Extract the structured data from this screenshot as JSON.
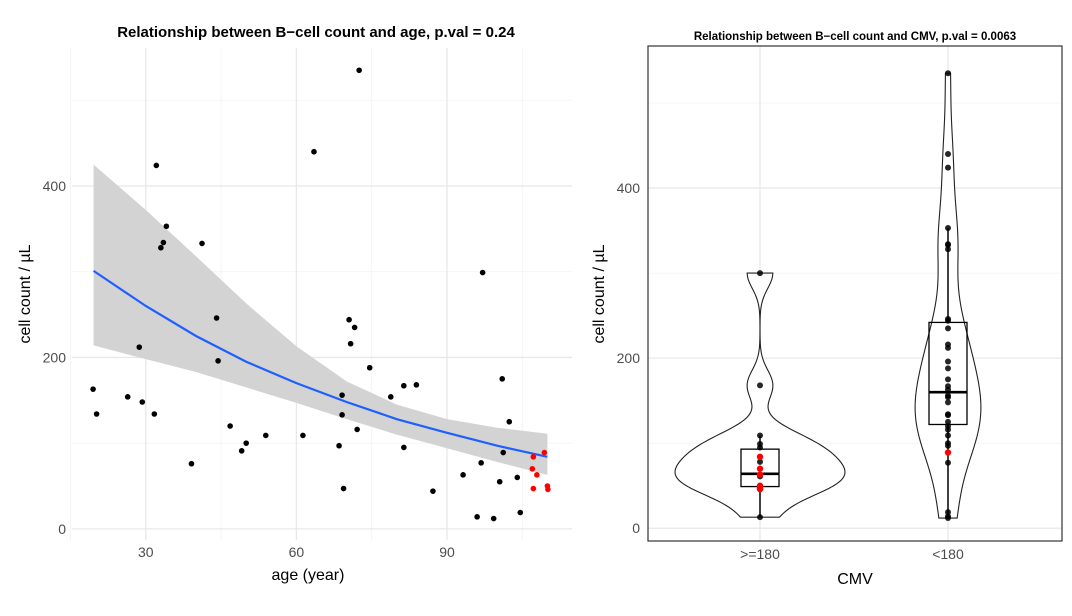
{
  "chart_data": [
    {
      "type": "scatter",
      "title": "Relationship between B−cell count and age, p.val = 0.24",
      "xlabel": "age (year)",
      "ylabel": "cell count / µL",
      "xlim": [
        15.3,
        114.9
      ],
      "ylim": [
        -13,
        561
      ],
      "xticks": [
        30,
        60,
        90
      ],
      "yticks": [
        0,
        200,
        400
      ],
      "grid": true,
      "colors": {
        "point": "#000000",
        "highlight": "#ff0000",
        "fit": "#1f5fff",
        "band": "#d3d3d3"
      },
      "points": [
        [
          72.5,
          535
        ],
        [
          63.5,
          440
        ],
        [
          32.1,
          424
        ],
        [
          34.1,
          353
        ],
        [
          33.5,
          334
        ],
        [
          33.0,
          328
        ],
        [
          41.2,
          333
        ],
        [
          97.1,
          299
        ],
        [
          44.1,
          246
        ],
        [
          70.5,
          244
        ],
        [
          71.6,
          235
        ],
        [
          28.7,
          212
        ],
        [
          70.8,
          216
        ],
        [
          44.4,
          196
        ],
        [
          74.6,
          188
        ],
        [
          101.0,
          175
        ],
        [
          19.5,
          163
        ],
        [
          81.4,
          167
        ],
        [
          83.9,
          168
        ],
        [
          26.4,
          154
        ],
        [
          78.8,
          154
        ],
        [
          69.1,
          156
        ],
        [
          29.3,
          148
        ],
        [
          20.2,
          134
        ],
        [
          31.7,
          134
        ],
        [
          69.1,
          133
        ],
        [
          102.4,
          125
        ],
        [
          46.8,
          120
        ],
        [
          72.1,
          116
        ],
        [
          53.9,
          109
        ],
        [
          61.3,
          109
        ],
        [
          50.0,
          100
        ],
        [
          68.5,
          97
        ],
        [
          81.4,
          95
        ],
        [
          49.1,
          91
        ],
        [
          101.2,
          89
        ],
        [
          96.8,
          77
        ],
        [
          39.1,
          76
        ],
        [
          93.2,
          63
        ],
        [
          104.0,
          60
        ],
        [
          100.5,
          55
        ],
        [
          69.4,
          47
        ],
        [
          87.2,
          44
        ],
        [
          104.6,
          19
        ],
        [
          96.0,
          14
        ],
        [
          99.3,
          12
        ]
      ],
      "highlight_points": [
        [
          109.4,
          89
        ],
        [
          107.2,
          84
        ],
        [
          107.0,
          70
        ],
        [
          107.9,
          63
        ],
        [
          107.2,
          47
        ],
        [
          110.0,
          50
        ],
        [
          110.1,
          46
        ]
      ],
      "fit": {
        "x": [
          19.6,
          30,
          40,
          50,
          60,
          70,
          80,
          90,
          100,
          110
        ],
        "y": [
          301,
          260,
          225,
          195,
          170,
          148,
          128,
          112,
          97,
          84
        ],
        "upper": [
          425,
          372,
          318,
          263,
          213,
          172,
          145,
          128,
          118,
          111
        ],
        "lower": [
          214,
          198,
          183,
          165,
          147,
          128,
          110,
          94,
          78,
          63
        ]
      }
    },
    {
      "type": "violin",
      "title": "Relationship between B−cell count and CMV, p.val = 0.0063",
      "xlabel": "CMV",
      "ylabel": "cell count / µL",
      "categories": [
        ">=180",
        "<180"
      ],
      "ylim": [
        -15,
        567
      ],
      "yticks": [
        0,
        200,
        400
      ],
      "grid": true,
      "groups": [
        {
          "name": ">=180",
          "points": [
            300,
            168,
            109,
            99,
            95,
            78,
            61,
            13
          ],
          "highlight_points": [
            84,
            70,
            63,
            50,
            47,
            46
          ],
          "box": {
            "min": 13,
            "q1": 49,
            "median": 64,
            "q3": 93,
            "max": 109
          }
        },
        {
          "name": "<180",
          "points": [
            535,
            440,
            424,
            353,
            334,
            328,
            333,
            246,
            244,
            235,
            216,
            212,
            196,
            188,
            175,
            167,
            163,
            156,
            154,
            148,
            134,
            133,
            125,
            120,
            116,
            109,
            100,
            97,
            77,
            19,
            14,
            12
          ],
          "highlight_points": [
            89
          ],
          "box": {
            "min": 12,
            "q1": 122,
            "median": 160,
            "q3": 242,
            "max": 353
          }
        }
      ]
    }
  ]
}
